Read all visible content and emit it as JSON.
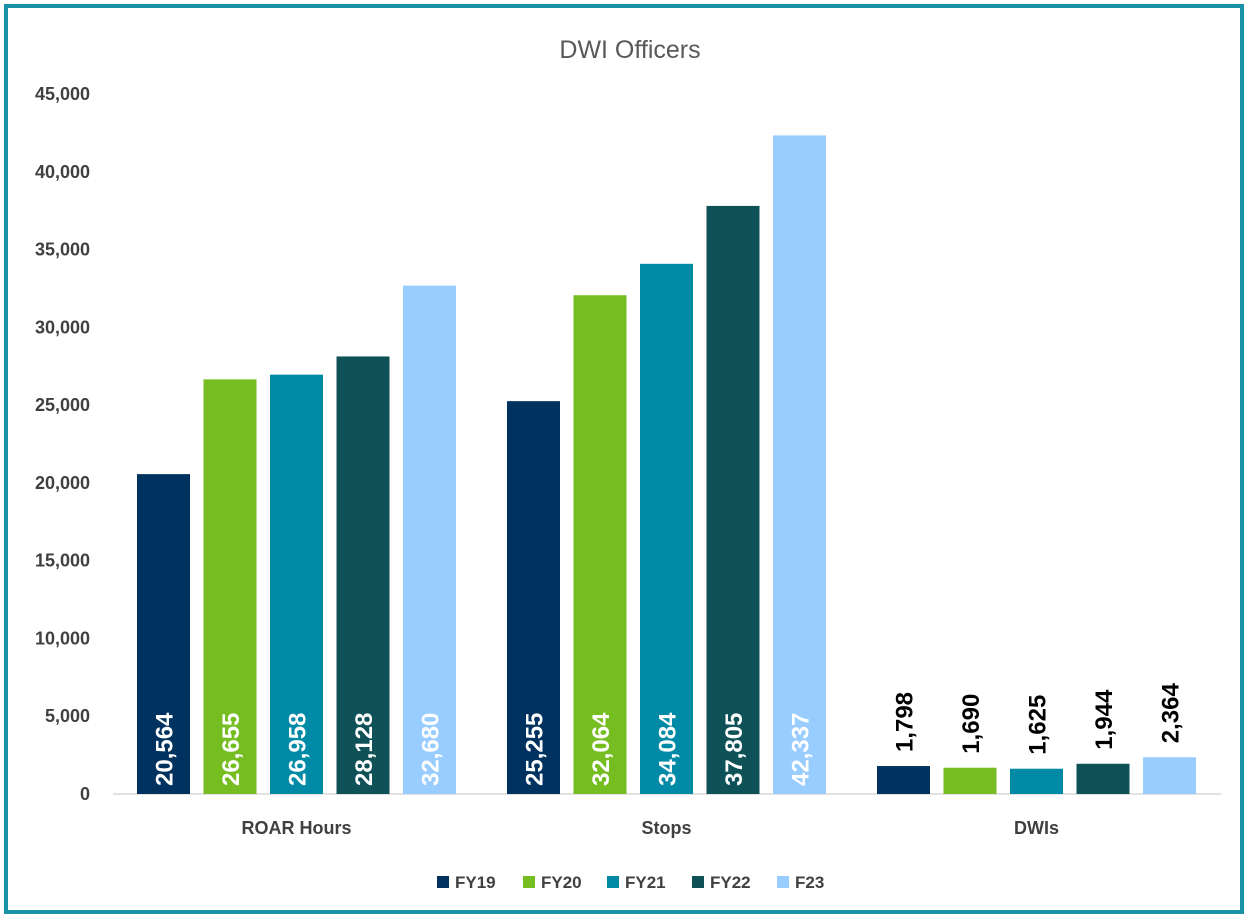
{
  "chart_data": {
    "type": "bar",
    "title": "DWI Officers",
    "xlabel": "",
    "ylabel": "",
    "ylim": [
      0,
      45000
    ],
    "yticks": [
      "0",
      "5,000",
      "10,000",
      "15,000",
      "20,000",
      "25,000",
      "30,000",
      "35,000",
      "40,000",
      "45,000"
    ],
    "yvalues": [
      0,
      5000,
      10000,
      15000,
      20000,
      25000,
      30000,
      35000,
      40000,
      45000
    ],
    "categories": [
      "ROAR Hours",
      "Stops",
      "DWIs"
    ],
    "series": [
      {
        "name": "FY19",
        "color": "#00325f",
        "values": [
          20564,
          25255,
          1798
        ],
        "labels": [
          "20,564",
          "25,255",
          "1,798"
        ]
      },
      {
        "name": "FY20",
        "color": "#76bd22",
        "values": [
          26655,
          32064,
          1690
        ],
        "labels": [
          "26,655",
          "32,064",
          "1,690"
        ]
      },
      {
        "name": "FY21",
        "color": "#008aa6",
        "values": [
          26958,
          34084,
          1625
        ],
        "labels": [
          "26,958",
          "34,084",
          "1,625"
        ]
      },
      {
        "name": "FY22",
        "color": "#0e5257",
        "values": [
          28128,
          37805,
          1944
        ],
        "labels": [
          "28,128",
          "37,805",
          "1,944"
        ]
      },
      {
        "name": "F23",
        "color": "#99ccff",
        "values": [
          32680,
          42337,
          2364
        ],
        "labels": [
          "32,680",
          "42,337",
          "2,364"
        ]
      }
    ],
    "grid": false,
    "legend_position": "bottom",
    "data_label_colors": {
      "inside": "#ffffff",
      "outside": "#000000"
    }
  },
  "frame_color": "#1a93a8"
}
